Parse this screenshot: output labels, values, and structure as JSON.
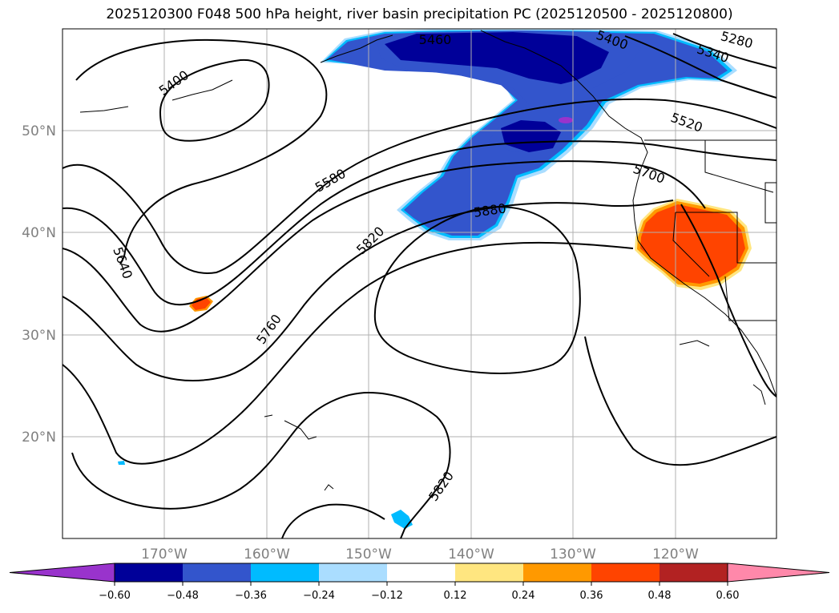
{
  "title": "2025120300 F048 500 hPa height, river basin precipitation PC (2025120500 - 2025120800)",
  "map": {
    "lat_labels": [
      "50°N",
      "40°N",
      "30°N",
      "20°N"
    ],
    "lon_labels": [
      "170°W",
      "160°W",
      "150°W",
      "140°W",
      "130°W",
      "120°W"
    ],
    "contour_labels": [
      "5460",
      "5400",
      "5280",
      "5340",
      "5400",
      "5520",
      "5580",
      "5700",
      "5880",
      "5820",
      "5640",
      "5760",
      "5820"
    ]
  },
  "colorbar": {
    "colors": [
      "#9933cc",
      "#000099",
      "#3355cc",
      "#00bbff",
      "#aaddff",
      "#ffffff",
      "#ffe680",
      "#ff9900",
      "#ff4400",
      "#b22222",
      "#ff88aa"
    ],
    "tick_labels": [
      "−0.60",
      "−0.48",
      "−0.36",
      "−0.24",
      "−0.12",
      "0.12",
      "0.24",
      "0.36",
      "0.48",
      "0.60"
    ]
  }
}
